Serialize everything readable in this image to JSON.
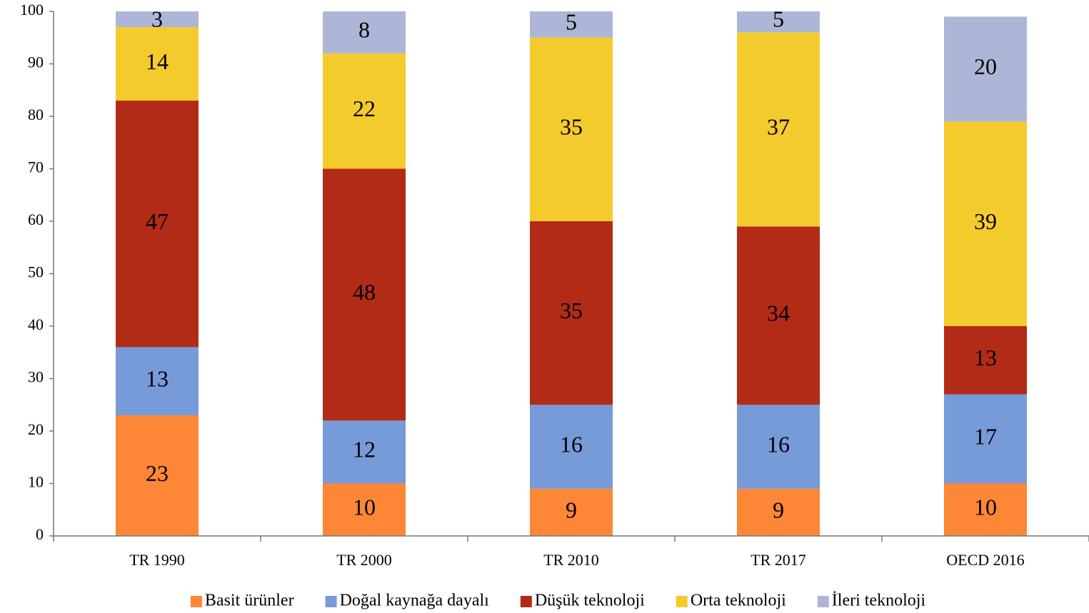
{
  "chart_data": {
    "type": "stacked_bar",
    "categories": [
      "TR 1990",
      "TR 2000",
      "TR 2010",
      "TR 2017",
      "OECD 2016"
    ],
    "series": [
      {
        "name": "Basit ürünler",
        "color": "#fd8637",
        "values": [
          23,
          10,
          9,
          9,
          10
        ]
      },
      {
        "name": "Doğal kaynağa dayalı",
        "color": "#779ad9",
        "values": [
          13,
          12,
          16,
          16,
          17
        ]
      },
      {
        "name": "Düşük teknoloji",
        "color": "#b22b16",
        "values": [
          47,
          48,
          35,
          34,
          13
        ]
      },
      {
        "name": "Orta teknoloji",
        "color": "#f4cb2c",
        "values": [
          14,
          22,
          35,
          37,
          39
        ]
      },
      {
        "name": "İleri teknoloji",
        "color": "#adb6d6",
        "values": [
          3,
          8,
          5,
          5,
          20
        ]
      }
    ],
    "ylim": [
      0,
      100
    ],
    "yticks": [
      0,
      10,
      20,
      30,
      40,
      50,
      60,
      70,
      80,
      90,
      100
    ],
    "legend": "bottom"
  }
}
